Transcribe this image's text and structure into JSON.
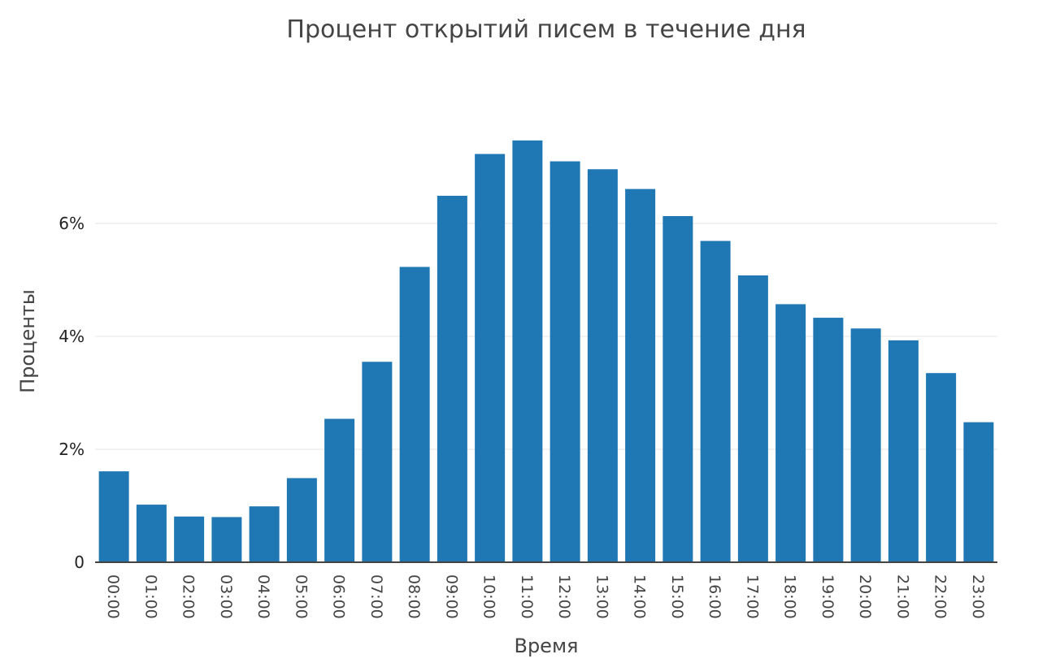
{
  "chart_data": {
    "type": "bar",
    "title": "Процент открытий писем в течение дня",
    "xlabel": "Время",
    "ylabel": "Проценты",
    "categories": [
      "00:00",
      "01:00",
      "02:00",
      "03:00",
      "04:00",
      "05:00",
      "06:00",
      "07:00",
      "08:00",
      "09:00",
      "10:00",
      "11:00",
      "12:00",
      "13:00",
      "14:00",
      "15:00",
      "16:00",
      "17:00",
      "18:00",
      "19:00",
      "20:00",
      "21:00",
      "22:00",
      "23:00"
    ],
    "values": [
      1.61,
      1.02,
      0.81,
      0.8,
      0.99,
      1.49,
      2.54,
      3.55,
      5.23,
      6.49,
      7.23,
      7.47,
      7.1,
      6.96,
      6.61,
      6.13,
      5.69,
      5.08,
      4.57,
      4.33,
      4.14,
      3.93,
      3.35,
      2.48
    ],
    "ylim": [
      0,
      8
    ],
    "yticks": [
      0,
      2,
      4,
      6
    ],
    "ytick_labels": [
      "0",
      "2%",
      "4%",
      "6%"
    ],
    "grid": true,
    "legend": "none",
    "colors": {
      "bar": "#1f77b4",
      "grid": "#e6e6e6",
      "axis": "#444444"
    }
  }
}
